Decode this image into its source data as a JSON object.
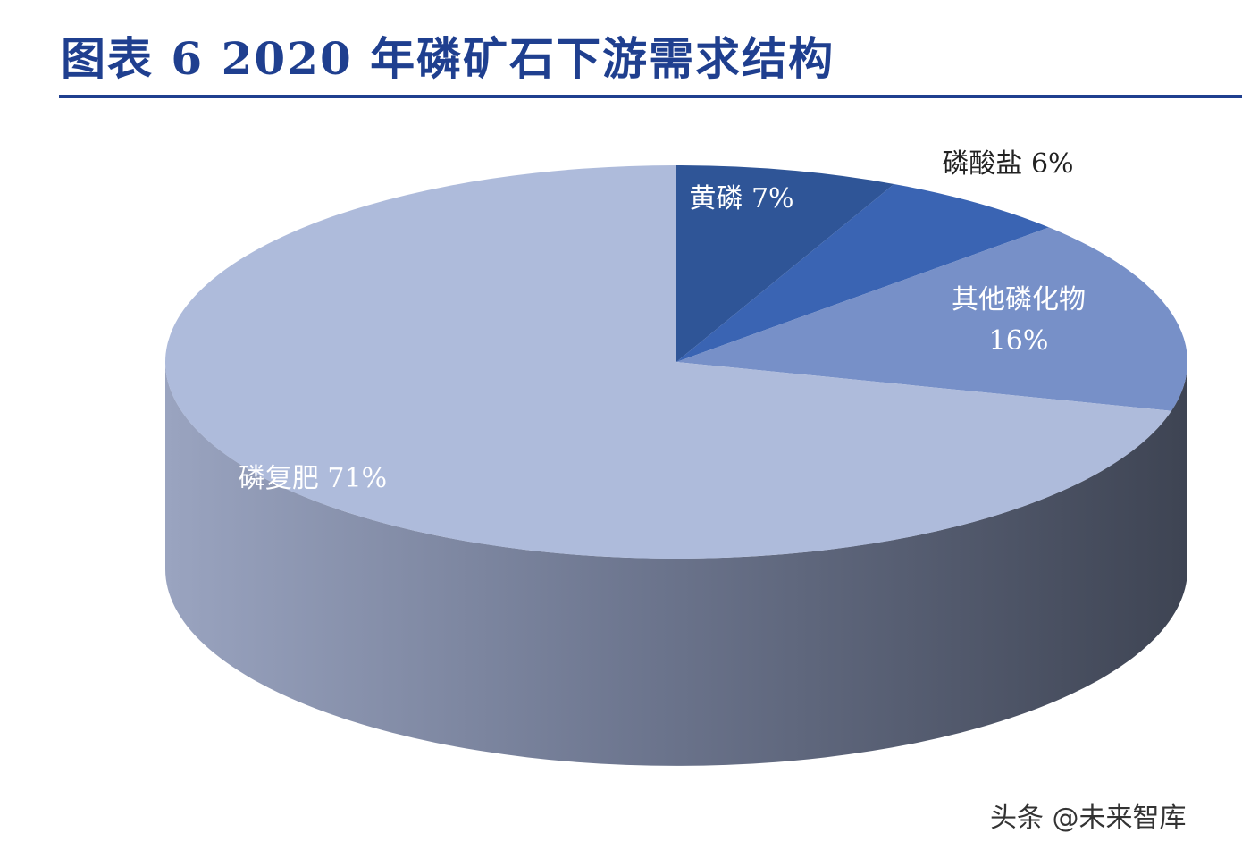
{
  "figure": {
    "title": "图表 6   2020 年磷矿石下游需求结构"
  },
  "chart_data": {
    "type": "pie",
    "title": "",
    "slices": [
      {
        "label": "黄磷",
        "value": 7,
        "value_label": "7%",
        "color": "#2f5597"
      },
      {
        "label": "磷酸盐",
        "value": 6,
        "value_label": "6%",
        "color": "#3a64b3"
      },
      {
        "label": "其他磷化物",
        "value": 16,
        "value_label": "16%",
        "color": "#7790c8"
      },
      {
        "label": "磷复肥",
        "value": 71,
        "value_label": "71%",
        "color": "#aebbdb"
      }
    ],
    "legend": "none"
  },
  "watermark": {
    "text": "头条 @未来智库"
  }
}
